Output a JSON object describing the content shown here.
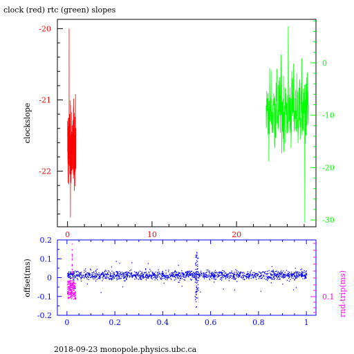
{
  "chart_data": [
    {
      "type": "line",
      "title": "clock (red) rtc (green) slopes",
      "ylabel": "clockslope",
      "xlim": [
        -1.2,
        29.4
      ],
      "ylim_left": [
        -22.78,
        -19.87
      ],
      "ylim_right": [
        -31.3,
        8.3
      ],
      "x_ticks": [
        0,
        10,
        20
      ],
      "y_ticks_left": [
        -22,
        -21,
        -20
      ],
      "y_ticks_right": [
        -30,
        -20,
        -10,
        0
      ],
      "colors": {
        "clock": "#ff0000",
        "rtc": "#00ff00",
        "axes": "#000000"
      },
      "series": [
        {
          "axis": "left",
          "color": "#ff0000",
          "x_range": [
            0.0,
            1.0
          ],
          "y_min": -22.65,
          "y_max": -20.0,
          "y_mean": -21.65,
          "y_std": 0.45
        },
        {
          "axis": "right",
          "color": "#00ff00",
          "x_range": [
            23.5,
            28.5
          ],
          "y_min": -30.5,
          "y_max": 7.0,
          "y_mean": -9.0,
          "y_std": 6.5
        }
      ]
    },
    {
      "type": "scatter",
      "xlabel": "",
      "ylabel_left": "offset(ms)",
      "ylabel_right": "rnd-trip(ms)",
      "xlim": [
        -0.04,
        1.04
      ],
      "ylim_left": [
        -0.2,
        0.2
      ],
      "x_ticks": [
        0,
        0.2,
        0.4,
        0.6,
        0.8,
        1
      ],
      "y_ticks_left": [
        -0.2,
        -0.1,
        0,
        0.1,
        0.2
      ],
      "y_ticks_right": [
        0.1
      ],
      "colors": {
        "offset": "#0000ff",
        "roundtrip": "#ff00ff",
        "axes": "#0000ff"
      },
      "series": [
        {
          "axis": "left",
          "color": "#0000ff",
          "x_range": [
            0.0,
            1.0
          ],
          "y_center": 0.015,
          "y_spread": 0.035,
          "spike_x": 0.54,
          "spike_y_range": [
            -0.16,
            0.14
          ]
        },
        {
          "axis": "right",
          "color": "#ff00ff",
          "x_range": [
            0.0,
            0.035
          ],
          "y_range": [
            0.092,
            0.14
          ]
        }
      ]
    }
  ],
  "footer": "2018-09-23  monopole.physics.ubc.ca"
}
